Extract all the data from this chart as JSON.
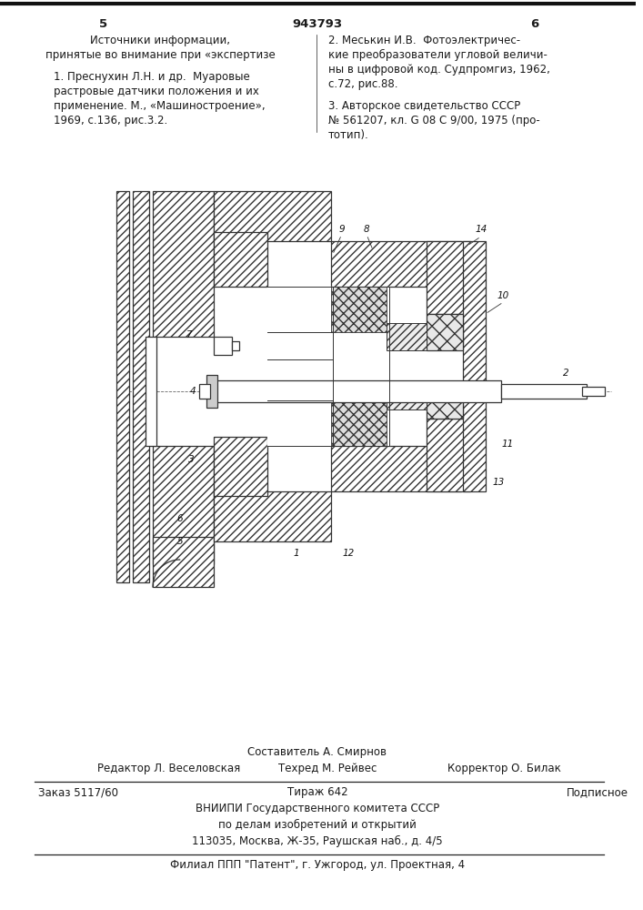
{
  "page_color": "#ffffff",
  "patent_number": "943793",
  "page_left": "5",
  "page_right": "6",
  "left_col_line1": "Источники информации,",
  "left_col_line2": "принятые во внимание при «экспертизе",
  "left_col_ref1_a": "1. Преснухин Л.Н. и др.  Муаровые",
  "left_col_ref1_b": "растровые датчики положения и их",
  "left_col_ref1_c": "применение. М., «Машиностроение»,",
  "left_col_ref1_d": "1969, с.136, рис.3.2.",
  "right_col_ref2_a": "2. Меськин И.В.  Фотоэлектричес-",
  "right_col_ref2_b": "кие преобразователи угловой величи-",
  "right_col_ref2_c": "ны в цифровой код. Судпромгиз, 1962,",
  "right_col_ref2_d": "с.72, рис.88.",
  "right_col_ref3_a": "3. Авторское свидетельство СССР",
  "right_col_ref3_b": "№ 561207, кл. G 08 C 9/00, 1975 (про-",
  "right_col_ref3_c": "тотип).",
  "footer_compositor": "Составитель А. Смирнов",
  "footer_editor": "Редактор Л. Веселовская",
  "footer_techred": "Техред М. Рейвес",
  "footer_corrector": "Корректор О. Билак",
  "footer_order": "Заказ 5117/60",
  "footer_tirazh": "Тираж 642",
  "footer_podpisnoe": "Подписное",
  "footer_vniip1": "ВНИИПИ Государственного комитета СССР",
  "footer_vniip2": "по делам изобретений и открытий",
  "footer_vniip3": "113035, Москва, Ж-35, Раушская наб., д. 4/5",
  "footer_filial": "Филиал ППП \"Патент\", г. Ужгород, ул. Проектная, 4",
  "text_color": "#1a1a1a",
  "line_color": "#222222"
}
